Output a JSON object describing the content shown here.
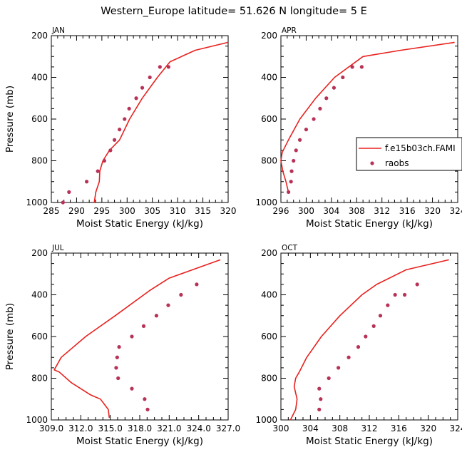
{
  "title": "Western_Europe  latitude= 51.626 N longitude= 5 E",
  "colors": {
    "model": "#e8211e",
    "obs": "#b83257",
    "axis": "#000000"
  },
  "legend": {
    "model_label": "f.e15b03ch.FAMI",
    "obs_label": "raobs"
  },
  "chart_data": [
    {
      "type": "line",
      "panel": "JAN",
      "xlabel": "Moist Static Energy (kJ/kg)",
      "ylabel": "Pressure (mb)",
      "xlim": [
        285,
        320
      ],
      "ylim": [
        1000,
        200
      ],
      "xticks": [
        285,
        290,
        295,
        300,
        305,
        310,
        315,
        320
      ],
      "xtick_labels": [
        "285",
        "290",
        "295",
        "300",
        "305",
        "310",
        "315",
        "320"
      ],
      "yticks": [
        1000,
        800,
        600,
        400,
        200
      ],
      "ytick_labels": [
        "1000",
        "800",
        "600",
        "400",
        "200"
      ],
      "series": [
        {
          "name": "f.e15b03ch.FAMI",
          "kind": "line",
          "x": [
            293.5,
            293.8,
            294.5,
            294.6,
            295.2,
            296.5,
            298.5,
            300.5,
            303.0,
            306.0,
            308.5,
            313.5,
            320.0
          ],
          "y": [
            1000,
            950,
            900,
            850,
            800,
            750,
            700,
            600,
            500,
            400,
            325,
            270,
            232
          ]
        },
        {
          "name": "raobs",
          "kind": "scatter",
          "x": [
            287.3,
            288.5,
            292.0,
            294.2,
            295.5,
            296.7,
            297.5,
            298.5,
            299.5,
            300.4,
            301.8,
            303.0,
            304.5,
            306.5,
            308.2
          ],
          "y": [
            1000,
            950,
            900,
            850,
            800,
            750,
            700,
            650,
            600,
            550,
            500,
            450,
            400,
            350,
            350
          ]
        }
      ]
    },
    {
      "type": "line",
      "panel": "APR",
      "xlabel": "Moist Static Energy (kJ/kg)",
      "ylabel": "",
      "xlim": [
        296,
        324
      ],
      "ylim": [
        1000,
        200
      ],
      "xticks": [
        296,
        300,
        304,
        308,
        312,
        316,
        320,
        324
      ],
      "xtick_labels": [
        "296",
        "300",
        "304",
        "308",
        "312",
        "316",
        "320",
        "324"
      ],
      "yticks": [
        1000,
        800,
        600,
        400,
        200
      ],
      "ytick_labels": [
        "1000",
        "800",
        "600",
        "400",
        "200"
      ],
      "series": [
        {
          "name": "f.e15b03ch.FAMI",
          "kind": "line",
          "x": [
            297.2,
            296.8,
            296.3,
            296.0,
            296.2,
            297.2,
            299.0,
            301.5,
            304.5,
            309.0,
            315.0,
            323.5
          ],
          "y": [
            950,
            900,
            850,
            800,
            760,
            700,
            600,
            500,
            400,
            300,
            270,
            232
          ]
        },
        {
          "name": "raobs",
          "kind": "scatter",
          "x": [
            297.2,
            297.6,
            297.7,
            298.0,
            298.4,
            299.0,
            300.0,
            301.2,
            302.2,
            303.2,
            304.4,
            305.8,
            307.3,
            308.8
          ],
          "y": [
            950,
            900,
            850,
            800,
            750,
            700,
            650,
            600,
            550,
            500,
            450,
            400,
            350,
            350
          ]
        }
      ]
    },
    {
      "type": "line",
      "panel": "JUL",
      "xlabel": "Moist Static Energy (kJ/kg)",
      "ylabel": "Pressure (mb)",
      "xlim": [
        309,
        327
      ],
      "ylim": [
        1000,
        200
      ],
      "xticks": [
        309,
        312,
        315,
        318,
        321,
        324,
        327
      ],
      "xtick_labels": [
        "309.0",
        "312.0",
        "315.0",
        "318.0",
        "321.0",
        "324.0",
        "327.0"
      ],
      "yticks": [
        1000,
        800,
        600,
        400,
        200
      ],
      "ytick_labels": [
        "1000",
        "800",
        "600",
        "400",
        "200"
      ],
      "series": [
        {
          "name": "f.e15b03ch.FAMI",
          "kind": "line",
          "x": [
            314.9,
            314.8,
            314.0,
            313.0,
            311.0,
            309.8,
            309.3,
            310.0,
            312.5,
            315.5,
            319.0,
            321.0,
            326.2
          ],
          "y": [
            990,
            950,
            900,
            880,
            820,
            770,
            760,
            700,
            600,
            500,
            380,
            320,
            232
          ]
        },
        {
          "name": "raobs",
          "kind": "scatter",
          "x": [
            318.8,
            318.5,
            317.2,
            315.8,
            315.6,
            315.7,
            315.9,
            317.2,
            318.4,
            319.7,
            320.9,
            322.2,
            323.8
          ],
          "y": [
            950,
            900,
            850,
            800,
            750,
            700,
            650,
            600,
            550,
            500,
            450,
            400,
            350
          ]
        }
      ]
    },
    {
      "type": "line",
      "panel": "OCT",
      "xlabel": "Moist Static Energy (kJ/kg)",
      "ylabel": "",
      "xlim": [
        300,
        324
      ],
      "ylim": [
        1000,
        200
      ],
      "xticks": [
        300,
        304,
        308,
        312,
        316,
        320,
        324
      ],
      "xtick_labels": [
        "300",
        "304",
        "308",
        "312",
        "316",
        "320",
        "324"
      ],
      "yticks": [
        1000,
        800,
        600,
        400,
        200
      ],
      "ytick_labels": [
        "1000",
        "800",
        "600",
        "400",
        "200"
      ],
      "series": [
        {
          "name": "f.e15b03ch.FAMI",
          "kind": "line",
          "x": [
            301.3,
            302.0,
            302.2,
            301.8,
            302.0,
            302.5,
            303.5,
            305.5,
            308.0,
            311.0,
            313.0,
            317.0,
            322.8
          ],
          "y": [
            1000,
            950,
            900,
            840,
            800,
            770,
            700,
            600,
            500,
            400,
            350,
            280,
            232
          ]
        },
        {
          "name": "raobs",
          "kind": "scatter",
          "x": [
            305.2,
            305.4,
            305.2,
            306.5,
            307.8,
            309.2,
            310.5,
            311.5,
            312.6,
            313.5,
            314.5,
            315.5,
            316.8,
            318.5
          ],
          "y": [
            950,
            900,
            850,
            800,
            750,
            700,
            650,
            600,
            550,
            500,
            450,
            400,
            400,
            350
          ]
        }
      ]
    }
  ]
}
